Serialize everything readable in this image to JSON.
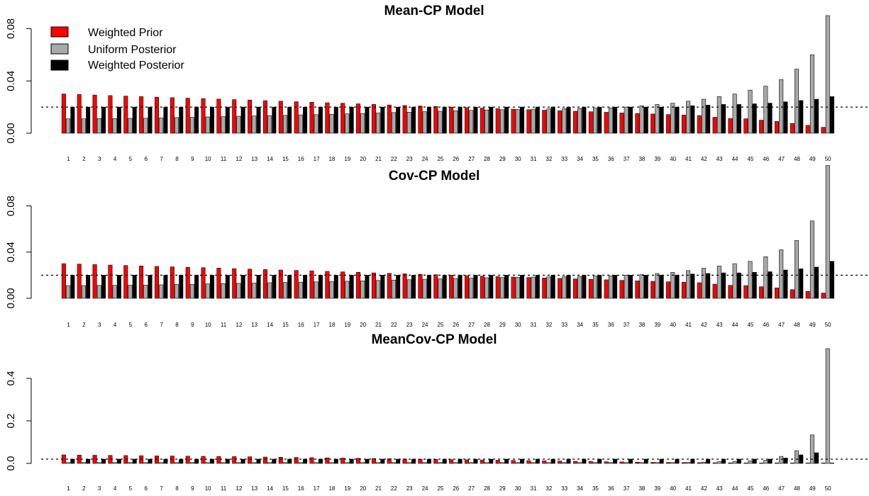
{
  "legend": [
    {
      "label": "Weighted Prior",
      "color": "#ff0000"
    },
    {
      "label": "Uniform Posterior",
      "color": "#a9a9a9"
    },
    {
      "label": "Weighted Posterior",
      "color": "#000000"
    }
  ],
  "chart_data": [
    {
      "type": "bar",
      "title": "Mean-CP Model",
      "categories": [
        "1",
        "2",
        "3",
        "4",
        "5",
        "6",
        "7",
        "8",
        "9",
        "10",
        "11",
        "12",
        "13",
        "14",
        "15",
        "16",
        "17",
        "18",
        "19",
        "20",
        "21",
        "22",
        "23",
        "24",
        "25",
        "26",
        "27",
        "28",
        "29",
        "30",
        "31",
        "32",
        "33",
        "34",
        "35",
        "36",
        "37",
        "38",
        "39",
        "40",
        "41",
        "42",
        "43",
        "44",
        "45",
        "46",
        "47",
        "48",
        "49",
        "50"
      ],
      "yticks": [
        "0.00",
        "0.04",
        "0.08"
      ],
      "ylim": [
        0,
        0.09
      ],
      "reference_line": 0.02,
      "series": [
        {
          "name": "Weighted Prior",
          "values": [
            0.03,
            0.0296,
            0.0292,
            0.0288,
            0.0284,
            0.028,
            0.0276,
            0.0272,
            0.0268,
            0.0265,
            0.0261,
            0.0257,
            0.0253,
            0.0249,
            0.0245,
            0.0241,
            0.0237,
            0.0233,
            0.0229,
            0.0225,
            0.022,
            0.0216,
            0.0212,
            0.0208,
            0.0204,
            0.02,
            0.0196,
            0.0192,
            0.0188,
            0.0184,
            0.018,
            0.0176,
            0.0172,
            0.0168,
            0.0164,
            0.016,
            0.0155,
            0.0151,
            0.0147,
            0.0143,
            0.0139,
            0.0135,
            0.0122,
            0.0112,
            0.011,
            0.01,
            0.009,
            0.0075,
            0.006,
            0.0045
          ]
        },
        {
          "name": "Uniform Posterior",
          "values": [
            0.011,
            0.011,
            0.0112,
            0.0112,
            0.0114,
            0.0115,
            0.0117,
            0.012,
            0.0122,
            0.0125,
            0.0127,
            0.013,
            0.0132,
            0.0135,
            0.0137,
            0.014,
            0.0142,
            0.0145,
            0.0148,
            0.0151,
            0.0155,
            0.0158,
            0.0161,
            0.0165,
            0.0168,
            0.0172,
            0.0175,
            0.0178,
            0.018,
            0.0182,
            0.0184,
            0.0186,
            0.0188,
            0.019,
            0.0192,
            0.0194,
            0.02,
            0.021,
            0.022,
            0.023,
            0.0245,
            0.026,
            0.028,
            0.03,
            0.033,
            0.036,
            0.041,
            0.049,
            0.06,
            0.09
          ]
        },
        {
          "name": "Weighted Posterior",
          "values": [
            0.02,
            0.02,
            0.02,
            0.02,
            0.02,
            0.02,
            0.02,
            0.02,
            0.02,
            0.02,
            0.02,
            0.02,
            0.02,
            0.02,
            0.02,
            0.02,
            0.02,
            0.02,
            0.02,
            0.02,
            0.02,
            0.02,
            0.02,
            0.02,
            0.02,
            0.02,
            0.02,
            0.02,
            0.02,
            0.02,
            0.02,
            0.02,
            0.02,
            0.02,
            0.02,
            0.02,
            0.02,
            0.02,
            0.02,
            0.02,
            0.021,
            0.0215,
            0.022,
            0.022,
            0.0225,
            0.023,
            0.024,
            0.025,
            0.026,
            0.028
          ]
        }
      ]
    },
    {
      "type": "bar",
      "title": "Cov-CP Model",
      "categories": [
        "1",
        "2",
        "3",
        "4",
        "5",
        "6",
        "7",
        "8",
        "9",
        "10",
        "11",
        "12",
        "13",
        "14",
        "15",
        "16",
        "17",
        "18",
        "19",
        "20",
        "21",
        "22",
        "23",
        "24",
        "25",
        "26",
        "27",
        "28",
        "29",
        "30",
        "31",
        "32",
        "33",
        "34",
        "35",
        "36",
        "37",
        "38",
        "39",
        "40",
        "41",
        "42",
        "43",
        "44",
        "45",
        "46",
        "47",
        "48",
        "49",
        "50"
      ],
      "yticks": [
        "0.00",
        "0.04",
        "0.08"
      ],
      "ylim": [
        0,
        0.1
      ],
      "reference_line": 0.02,
      "series": [
        {
          "name": "Weighted Prior",
          "values": [
            0.03,
            0.0296,
            0.0292,
            0.0288,
            0.0284,
            0.028,
            0.0276,
            0.0272,
            0.0268,
            0.0265,
            0.0261,
            0.0257,
            0.0253,
            0.0249,
            0.0245,
            0.0241,
            0.0237,
            0.0233,
            0.0229,
            0.0225,
            0.022,
            0.0216,
            0.0212,
            0.0208,
            0.0204,
            0.02,
            0.0196,
            0.0192,
            0.0188,
            0.0184,
            0.018,
            0.0176,
            0.0172,
            0.0168,
            0.0164,
            0.016,
            0.0155,
            0.0151,
            0.0147,
            0.0143,
            0.0139,
            0.0135,
            0.0122,
            0.0112,
            0.011,
            0.01,
            0.009,
            0.0075,
            0.006,
            0.0045
          ]
        },
        {
          "name": "Uniform Posterior",
          "values": [
            0.011,
            0.011,
            0.0112,
            0.0112,
            0.0114,
            0.0115,
            0.0117,
            0.012,
            0.0122,
            0.0125,
            0.0127,
            0.013,
            0.0132,
            0.0135,
            0.0137,
            0.014,
            0.0142,
            0.0145,
            0.0148,
            0.0151,
            0.0155,
            0.0158,
            0.0161,
            0.0165,
            0.0168,
            0.0172,
            0.0175,
            0.0178,
            0.018,
            0.0182,
            0.0184,
            0.0186,
            0.0188,
            0.019,
            0.0192,
            0.0194,
            0.02,
            0.0205,
            0.0215,
            0.0225,
            0.024,
            0.026,
            0.028,
            0.03,
            0.032,
            0.036,
            0.042,
            0.05,
            0.067,
            0.115
          ]
        },
        {
          "name": "Weighted Posterior",
          "values": [
            0.02,
            0.02,
            0.02,
            0.02,
            0.02,
            0.02,
            0.02,
            0.02,
            0.02,
            0.02,
            0.02,
            0.02,
            0.02,
            0.02,
            0.02,
            0.02,
            0.02,
            0.02,
            0.02,
            0.02,
            0.02,
            0.02,
            0.02,
            0.02,
            0.02,
            0.02,
            0.02,
            0.02,
            0.02,
            0.02,
            0.02,
            0.02,
            0.02,
            0.02,
            0.02,
            0.02,
            0.02,
            0.02,
            0.02,
            0.02,
            0.021,
            0.0215,
            0.022,
            0.022,
            0.0225,
            0.023,
            0.0245,
            0.0255,
            0.027,
            0.032
          ]
        }
      ]
    },
    {
      "type": "bar",
      "title": "MeanCov-CP Model",
      "categories": [
        "1",
        "2",
        "3",
        "4",
        "5",
        "6",
        "7",
        "8",
        "9",
        "10",
        "11",
        "12",
        "13",
        "14",
        "15",
        "16",
        "17",
        "18",
        "19",
        "20",
        "21",
        "22",
        "23",
        "24",
        "25",
        "26",
        "27",
        "28",
        "29",
        "30",
        "31",
        "32",
        "33",
        "34",
        "35",
        "36",
        "37",
        "38",
        "39",
        "40",
        "41",
        "42",
        "43",
        "44",
        "45",
        "46",
        "47",
        "48",
        "49",
        "50"
      ],
      "yticks": [
        "0.0",
        "0.2",
        "0.4"
      ],
      "ylim": [
        0,
        0.55
      ],
      "reference_line": 0.02,
      "series": [
        {
          "name": "Weighted Prior",
          "values": [
            0.04,
            0.039,
            0.0383,
            0.0376,
            0.0369,
            0.0362,
            0.0355,
            0.0348,
            0.0341,
            0.0334,
            0.0327,
            0.032,
            0.031,
            0.03,
            0.029,
            0.028,
            0.027,
            0.026,
            0.025,
            0.024,
            0.023,
            0.022,
            0.021,
            0.02,
            0.019,
            0.018,
            0.017,
            0.016,
            0.015,
            0.014,
            0.013,
            0.012,
            0.011,
            0.01,
            0.009,
            0.008,
            0.007,
            0.006,
            0.005,
            0.0045,
            0.004,
            0.0035,
            0.003,
            0.0025,
            0.002,
            0.0015,
            0.0012,
            0.001,
            0.0008,
            0.0005
          ]
        },
        {
          "name": "Uniform Posterior",
          "values": [
            0.004,
            0.004,
            0.004,
            0.004,
            0.004,
            0.004,
            0.004,
            0.004,
            0.004,
            0.004,
            0.004,
            0.004,
            0.004,
            0.004,
            0.004,
            0.004,
            0.004,
            0.004,
            0.004,
            0.004,
            0.004,
            0.004,
            0.004,
            0.004,
            0.004,
            0.004,
            0.004,
            0.004,
            0.004,
            0.004,
            0.004,
            0.004,
            0.004,
            0.004,
            0.004,
            0.004,
            0.004,
            0.004,
            0.004,
            0.004,
            0.005,
            0.006,
            0.008,
            0.01,
            0.012,
            0.015,
            0.033,
            0.06,
            0.134,
            0.54
          ]
        },
        {
          "name": "Weighted Posterior",
          "values": [
            0.02,
            0.02,
            0.02,
            0.02,
            0.02,
            0.02,
            0.02,
            0.02,
            0.02,
            0.02,
            0.02,
            0.02,
            0.02,
            0.02,
            0.02,
            0.02,
            0.02,
            0.02,
            0.02,
            0.02,
            0.02,
            0.02,
            0.02,
            0.02,
            0.02,
            0.02,
            0.02,
            0.02,
            0.02,
            0.02,
            0.02,
            0.02,
            0.02,
            0.02,
            0.02,
            0.02,
            0.02,
            0.02,
            0.02,
            0.02,
            0.02,
            0.02,
            0.02,
            0.02,
            0.02,
            0.02,
            0.025,
            0.04,
            0.05,
            0.002
          ]
        }
      ]
    }
  ]
}
